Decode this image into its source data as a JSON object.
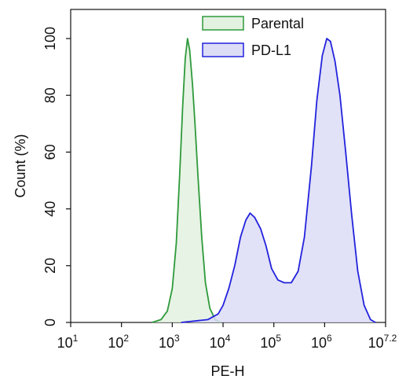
{
  "chart_data": {
    "type": "area",
    "xlabel": "PE-H",
    "ylabel": "Count (%)",
    "x_scale": "log10",
    "xlim": [
      10,
      15848932
    ],
    "ylim": [
      0,
      105
    ],
    "x_ticks": [
      {
        "base": "10",
        "exp": "1"
      },
      {
        "base": "10",
        "exp": "2"
      },
      {
        "base": "10",
        "exp": "3"
      },
      {
        "base": "10",
        "exp": "4"
      },
      {
        "base": "10",
        "exp": "5"
      },
      {
        "base": "10",
        "exp": "6"
      },
      {
        "base": "10",
        "exp": "7.2"
      }
    ],
    "y_ticks": [
      "0",
      "20",
      "40",
      "60",
      "80",
      "100"
    ],
    "legend_position": "top-center",
    "grid": false,
    "series": [
      {
        "name": "Parental",
        "color": "#2e9a3a",
        "fill": "#e3f1e1",
        "points": [
          [
            400,
            0
          ],
          [
            600,
            1
          ],
          [
            800,
            4
          ],
          [
            1000,
            12
          ],
          [
            1200,
            28
          ],
          [
            1400,
            52
          ],
          [
            1600,
            76
          ],
          [
            1800,
            93
          ],
          [
            2000,
            100
          ],
          [
            2200,
            96
          ],
          [
            2500,
            84
          ],
          [
            2800,
            70
          ],
          [
            3200,
            52
          ],
          [
            3800,
            30
          ],
          [
            4500,
            14
          ],
          [
            5500,
            5
          ],
          [
            7000,
            1
          ],
          [
            9000,
            0
          ]
        ]
      },
      {
        "name": "PD-L1",
        "color": "#2222dd",
        "fill": "#dcdcf6",
        "points": [
          [
            1500,
            0
          ],
          [
            5000,
            1
          ],
          [
            8000,
            3
          ],
          [
            10000,
            6
          ],
          [
            13000,
            12
          ],
          [
            17000,
            20
          ],
          [
            22000,
            30
          ],
          [
            28000,
            36
          ],
          [
            34000,
            38.5
          ],
          [
            42000,
            37
          ],
          [
            55000,
            33
          ],
          [
            70000,
            27
          ],
          [
            90000,
            19
          ],
          [
            120000,
            15
          ],
          [
            160000,
            14
          ],
          [
            220000,
            14
          ],
          [
            300000,
            18
          ],
          [
            400000,
            30
          ],
          [
            550000,
            55
          ],
          [
            700000,
            78
          ],
          [
            900000,
            94
          ],
          [
            1100000,
            100
          ],
          [
            1300000,
            99
          ],
          [
            1600000,
            92
          ],
          [
            2000000,
            80
          ],
          [
            2600000,
            60
          ],
          [
            3400000,
            38
          ],
          [
            4500000,
            18
          ],
          [
            6000000,
            6
          ],
          [
            8000000,
            1
          ],
          [
            10000000,
            0
          ]
        ]
      }
    ]
  }
}
